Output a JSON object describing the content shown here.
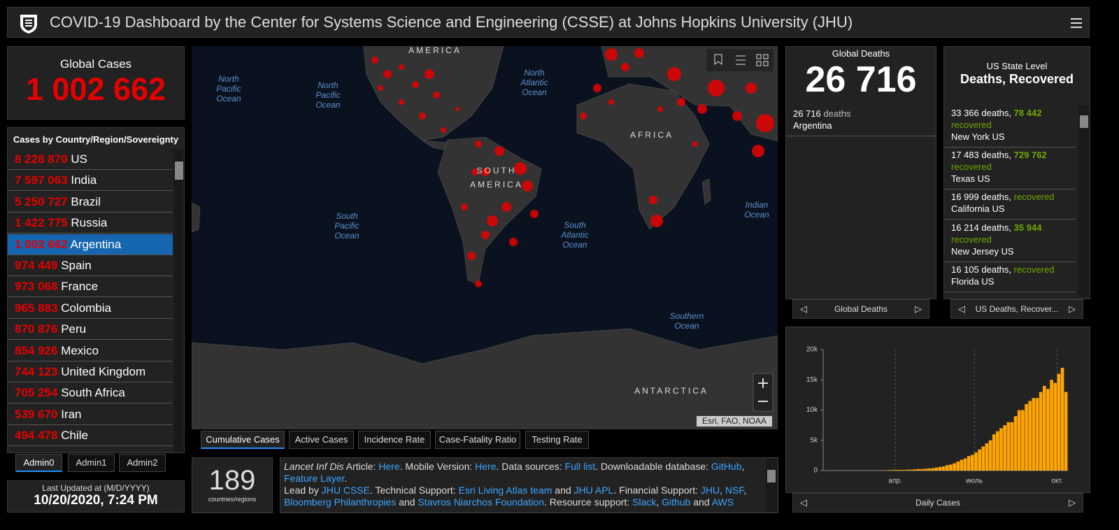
{
  "header": {
    "title": "COVID-19 Dashboard by the Center for Systems Science and Engineering (CSSE) at Johns Hopkins University (JHU)"
  },
  "global_cases": {
    "label": "Global Cases",
    "value": "1 002 662"
  },
  "country_list": {
    "title": "Cases by Country/Region/Sovereignty",
    "selected": 4,
    "rows": [
      {
        "value": "8 228 870",
        "name": "US"
      },
      {
        "value": "7 597 063",
        "name": "India"
      },
      {
        "value": "5 250 727",
        "name": "Brazil"
      },
      {
        "value": "1 422 775",
        "name": "Russia"
      },
      {
        "value": "1 002 662",
        "name": "Argentina"
      },
      {
        "value": "974 449",
        "name": "Spain"
      },
      {
        "value": "973 068",
        "name": "France"
      },
      {
        "value": "965 883",
        "name": "Colombia"
      },
      {
        "value": "870 876",
        "name": "Peru"
      },
      {
        "value": "854 926",
        "name": "Mexico"
      },
      {
        "value": "744 123",
        "name": "United Kingdom"
      },
      {
        "value": "705 254",
        "name": "South Africa"
      },
      {
        "value": "539 670",
        "name": "Iran"
      },
      {
        "value": "494 478",
        "name": "Chile"
      }
    ]
  },
  "admin_tabs": [
    "Admin0",
    "Admin1",
    "Admin2"
  ],
  "last_updated": {
    "label": "Last Updated at (M/D/YYYY)",
    "value": "10/20/2020, 7:24 PM"
  },
  "map": {
    "labels": [
      {
        "lines": [
          "AMERICA"
        ],
        "kind": "land"
      },
      {
        "lines": [
          "North",
          "Pacific",
          "Ocean"
        ],
        "kind": "ocean"
      },
      {
        "lines": [
          "North",
          "Pacific",
          "Ocean"
        ],
        "kind": "ocean"
      },
      {
        "lines": [
          "North",
          "Atlantic",
          "Ocean"
        ],
        "kind": "ocean"
      },
      {
        "lines": [
          "AFRICA"
        ],
        "kind": "land"
      },
      {
        "lines": [
          "SOUTH",
          "AMERICA"
        ],
        "kind": "land"
      },
      {
        "lines": [
          "South",
          "Pacific",
          "Ocean"
        ],
        "kind": "ocean"
      },
      {
        "lines": [
          "South",
          "Atlantic",
          "Ocean"
        ],
        "kind": "ocean"
      },
      {
        "lines": [
          "Indian",
          "Ocean"
        ],
        "kind": "ocean"
      },
      {
        "lines": [
          "Southern",
          "Ocean"
        ],
        "kind": "ocean"
      },
      {
        "lines": [
          "ANTARCTICA"
        ],
        "kind": "land"
      }
    ],
    "attribution": "Esri, FAO, NOAA",
    "tabs": [
      "Cumulative Cases",
      "Active Cases",
      "Incidence Rate",
      "Case-Fatality Ratio",
      "Testing Rate"
    ],
    "active_tab": 0
  },
  "countries_count": {
    "value": "189",
    "label": "countries/regions"
  },
  "info": [
    {
      "text": "Lancet Inf Dis",
      "kind": "italic"
    },
    {
      "text": " Article: ",
      "kind": "plain"
    },
    {
      "text": "Here",
      "kind": "link"
    },
    {
      "text": ". Mobile Version: ",
      "kind": "plain"
    },
    {
      "text": "Here",
      "kind": "link"
    },
    {
      "text": ". Data sources: ",
      "kind": "plain"
    },
    {
      "text": "Full list",
      "kind": "link"
    },
    {
      "text": ". Downloadable database: ",
      "kind": "plain"
    },
    {
      "text": "GitHub",
      "kind": "link"
    },
    {
      "text": ", ",
      "kind": "plain"
    },
    {
      "text": "Feature Layer",
      "kind": "link"
    },
    {
      "text": ".",
      "kind": "plain"
    },
    {
      "text": "Lead by ",
      "kind": "newline"
    },
    {
      "text": "JHU CSSE",
      "kind": "link"
    },
    {
      "text": ". Technical Support: ",
      "kind": "plain"
    },
    {
      "text": "Esri Living Atlas team",
      "kind": "link"
    },
    {
      "text": " and ",
      "kind": "plain"
    },
    {
      "text": "JHU APL",
      "kind": "link"
    },
    {
      "text": ". Financial Support: ",
      "kind": "plain"
    },
    {
      "text": "JHU",
      "kind": "link"
    },
    {
      "text": ", ",
      "kind": "plain"
    },
    {
      "text": "NSF",
      "kind": "link"
    },
    {
      "text": ", ",
      "kind": "plain"
    },
    {
      "text": "Bloomberg Philanthropies",
      "kind": "link"
    },
    {
      "text": " and ",
      "kind": "plain"
    },
    {
      "text": "Stavros Niarchos Foundation",
      "kind": "link"
    },
    {
      "text": ". Resource support: ",
      "kind": "plain"
    },
    {
      "text": "Slack",
      "kind": "link"
    },
    {
      "text": ", ",
      "kind": "plain"
    },
    {
      "text": "Github",
      "kind": "link"
    },
    {
      "text": " and ",
      "kind": "plain"
    },
    {
      "text": "AWS",
      "kind": "link"
    }
  ],
  "global_deaths": {
    "title": "Global Deaths",
    "value": "26 716",
    "detail_value": "26 716",
    "detail_unit": "deaths",
    "detail_place": "Argentina",
    "nav": "Global Deaths"
  },
  "us_states": {
    "subtitle": "US State Level",
    "title": "Deaths, Recovered",
    "recovered_label": "recovered",
    "items": [
      {
        "deaths": "33 366 deaths,",
        "recovered": "78 442",
        "place": "New York US"
      },
      {
        "deaths": "17 483 deaths,",
        "recovered": "729 762",
        "place": "Texas US"
      },
      {
        "deaths": "16 999 deaths,",
        "place": "California US"
      },
      {
        "deaths": "16 214 deaths,",
        "recovered": "35 944",
        "place": "New Jersey US"
      },
      {
        "deaths": "16 105 deaths,",
        "place": "Florida US"
      }
    ],
    "nav": "US Deaths, Recover..."
  },
  "chart_data": {
    "type": "bar",
    "color": "#ffa500",
    "values": [
      0,
      0,
      0,
      0,
      0,
      0,
      0,
      0,
      0,
      0,
      0,
      0,
      0,
      0,
      0,
      10,
      30,
      60,
      80,
      100,
      100,
      120,
      100,
      150,
      150,
      200,
      250,
      250,
      300,
      350,
      400,
      500,
      600,
      700,
      900,
      1000,
      1200,
      1500,
      1800,
      2000,
      2400,
      2600,
      3000,
      3500,
      4000,
      4500,
      5000,
      6000,
      6500,
      7000,
      7500,
      8000,
      8000,
      9000,
      10000,
      10000,
      11000,
      11500,
      12000,
      12000,
      13000,
      14000,
      13500,
      15000,
      14500,
      16000,
      17000,
      13000
    ],
    "xlim": [
      0,
      68
    ],
    "xticks": [
      {
        "value": 20,
        "label": "апр."
      },
      {
        "value": 42,
        "label": "июль"
      },
      {
        "value": 65,
        "label": "окт."
      }
    ],
    "ylim": [
      0,
      20000
    ],
    "yticks": [
      0,
      {
        "value": 5000,
        "label": "5k"
      },
      {
        "value": 10000,
        "label": "10k"
      },
      {
        "value": 15000,
        "label": "15k"
      },
      {
        "value": 20000,
        "label": "20k"
      }
    ],
    "grid": true,
    "nav": "Daily Cases"
  }
}
